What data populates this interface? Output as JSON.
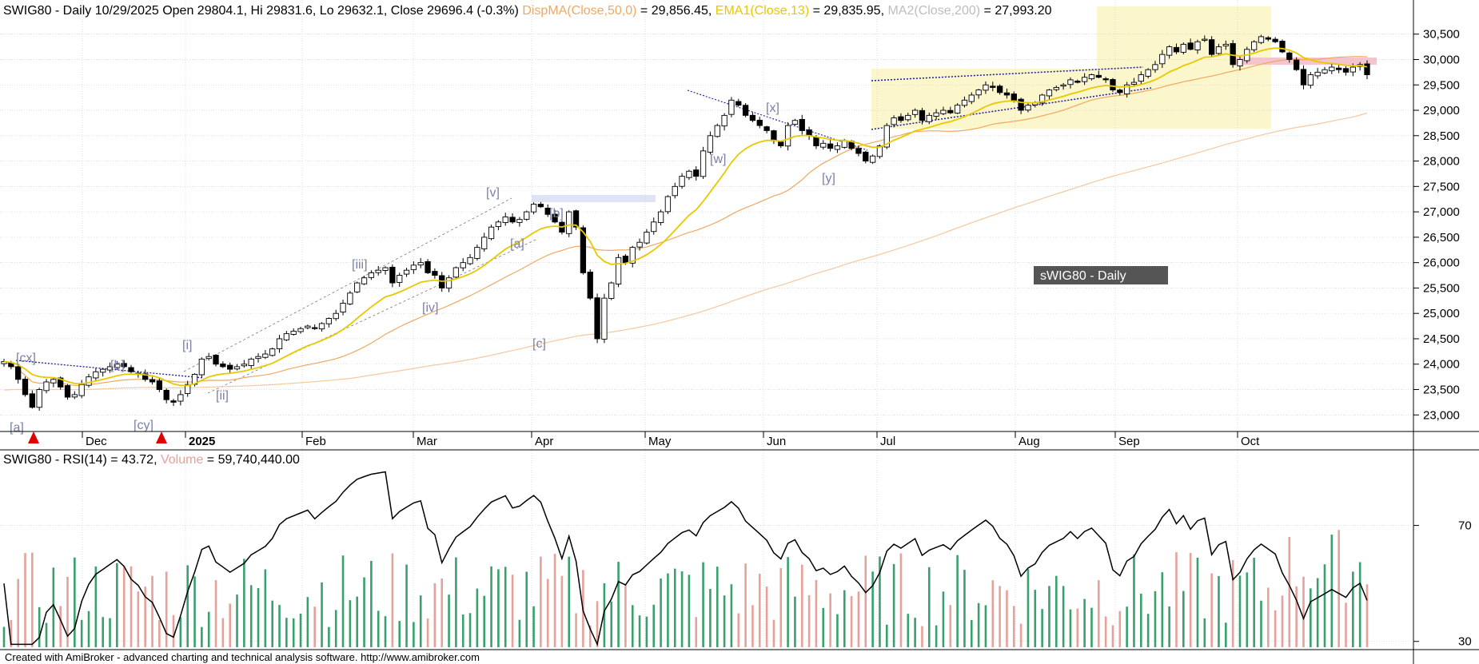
{
  "colors": {
    "up_candle": "#ffffff",
    "down_candle": "#000000",
    "ema": "#e8c800",
    "ma50": "#f0a860",
    "ma200": "#f3c9a0",
    "grid": "#c8c8c8",
    "rsi": "#000000",
    "vol_up": "#3aa06e",
    "vol_down": "#e6a29a",
    "wave_label": "#7b7fa6",
    "zone_fill": "#fbf6cc",
    "band_pink": "#f6c4cc",
    "band_blue": "#dfe3f6",
    "marker": "#e00000"
  },
  "header": {
    "prefix": "SWIG80 - Daily 10/29/2025 Open 29804.1, Hi 29831.6, Lo 29632.1, Close 29696.4 (-0.3%) ",
    "ma50_name": "DispMA(Close,50,0)",
    "ma50_value": " = 29,856.45, ",
    "ema_name": "EMA1(Close,13)",
    "ema_value": " = 29,835.95, ",
    "ma200_name": "MA2(Close,200)",
    "ma200_value": " = 27,993.20"
  },
  "watermark": "sWIG80 - Daily",
  "rsi_header": {
    "prefix": "SWIG80 - RSI(14) = 43.72, ",
    "vol_name": "Volume",
    "vol_value": " = 59,740,440.00"
  },
  "footer": "Created with AmiBroker - advanced charting and technical analysis software. http://www.amibroker.com",
  "chart_data": [
    {
      "type": "candlestick",
      "title": "SWIG80 - Daily",
      "x_months": [
        "Dec",
        "2025",
        "Feb",
        "Mar",
        "Apr",
        "May",
        "Jun",
        "Jul",
        "Aug",
        "Sep",
        "Oct"
      ],
      "y_ticks": [
        23000,
        23500,
        24000,
        24500,
        25000,
        25500,
        26000,
        26500,
        27000,
        27500,
        28000,
        28500,
        29000,
        29500,
        30000,
        30500
      ],
      "ylim": [
        22800,
        30700
      ],
      "close_approx": [
        24050,
        23950,
        23700,
        23400,
        23150,
        23500,
        23650,
        23700,
        23550,
        23350,
        23400,
        23600,
        23750,
        23850,
        23900,
        23950,
        24000,
        23950,
        23850,
        23800,
        23700,
        23650,
        23500,
        23300,
        23250,
        23400,
        23600,
        23800,
        24100,
        24150,
        24000,
        23950,
        23900,
        23950,
        24000,
        24100,
        24150,
        24200,
        24300,
        24500,
        24600,
        24650,
        24700,
        24750,
        24700,
        24800,
        24900,
        25000,
        25200,
        25400,
        25600,
        25700,
        25800,
        25850,
        25900,
        25600,
        25750,
        25850,
        25950,
        26000,
        25800,
        25750,
        25500,
        25700,
        25900,
        26000,
        26100,
        26300,
        26500,
        26700,
        26800,
        26900,
        26800,
        26850,
        27000,
        27150,
        27100,
        26950,
        26800,
        26600,
        27000,
        26700,
        25800,
        25300,
        24500,
        25300,
        25600,
        26100,
        26000,
        26300,
        26400,
        26600,
        26800,
        27000,
        27300,
        27500,
        27700,
        27800,
        27700,
        28200,
        28500,
        28700,
        28900,
        29200,
        29100,
        28900,
        28800,
        28700,
        28600,
        28400,
        28300,
        28700,
        28800,
        28600,
        28500,
        28300,
        28350,
        28250,
        28300,
        28400,
        28250,
        28150,
        28000,
        28100,
        28300,
        28700,
        28850,
        28800,
        28900,
        29000,
        28800,
        28900,
        28950,
        29000,
        28950,
        29100,
        29200,
        29300,
        29400,
        29500,
        29450,
        29350,
        29300,
        29200,
        29000,
        29100,
        29150,
        29300,
        29400,
        29450,
        29500,
        29600,
        29550,
        29650,
        29700,
        29650,
        29600,
        29400,
        29350,
        29500,
        29550,
        29700,
        29800,
        29900,
        30100,
        30250,
        30150,
        30300,
        30200,
        30350,
        30400,
        30100,
        30250,
        30300,
        29900,
        30000,
        30200,
        30350,
        30450,
        30400,
        30350,
        30150,
        30000,
        29800,
        29500,
        29700,
        29750,
        29800,
        29850,
        29800,
        29750,
        29850,
        29900,
        29700
      ],
      "ema13_label": "EMA1(Close,13) = 29,835.95",
      "ma50_label": "DispMA(Close,50,0) = 29,856.45",
      "ma200_label": "MA2(Close,200) = 27,993.20",
      "wave_labels": [
        "[cx]",
        "[a]",
        "[b]",
        "[cy]",
        "[i]",
        "[ii]",
        "[iii]",
        "[iv]",
        "[v]",
        "[a]",
        "[b]",
        "[c]",
        "[w]",
        "[x]",
        "[y]"
      ]
    },
    {
      "type": "line",
      "title": "SWIG80 - RSI(14)",
      "y_ticks": [
        30,
        70
      ],
      "ylim": [
        28,
        90
      ],
      "rsi_last": 43.72,
      "volume_last": 59740440
    }
  ]
}
